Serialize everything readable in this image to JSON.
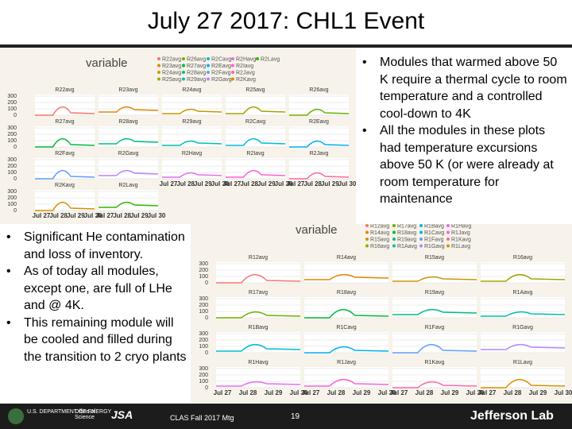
{
  "title": "July 27 2017: CHL1 Event",
  "right_bullets": [
    "Modules that warmed above 50 K require a thermal cycle to room temperature and a controlled cool-down to 4K",
    "All the modules in these plots had temperature excursions above 50 K (or were already at room temperature for maintenance"
  ],
  "left_bullets": [
    "Significant He contamination and loss of inventory.",
    "As of today all modules, except one, are full of LHe and @ 4K.",
    "This remaining module will be cooled and filled during the transition to 2 cryo plants"
  ],
  "plot_1": {
    "legend_title": "variable",
    "legend": [
      "R22avg",
      "R23avg",
      "R24avg",
      "R25avg",
      "R26avg",
      "R27avg",
      "R28avg",
      "R29avg",
      "R2Cavg",
      "R2Eavg",
      "R2Favg",
      "R2Gavg",
      "R2Havg",
      "R2Iavg",
      "R2Javg",
      "R2Kavg",
      "R2Lavg"
    ],
    "panels": [
      [
        "R22avg",
        "R23avg",
        "R24avg",
        "R25avg",
        "R26avg"
      ],
      [
        "R27avg",
        "R28avg",
        "R29avg",
        "R2Cavg",
        "R2Eavg"
      ],
      [
        "R2Favg",
        "R2Gavg",
        "R2Havg",
        "R2Iavg",
        "R2Javg"
      ],
      [
        "R2Kavg",
        "R2Lavg"
      ]
    ],
    "yticks": [
      "300",
      "200",
      "100",
      "0"
    ],
    "xticks": [
      "Jul 27",
      "Jul 28",
      "Jul 29",
      "Jul 30"
    ]
  },
  "plot_2": {
    "legend_title": "variable",
    "legend": [
      "R12avg",
      "R14avg",
      "R15avg",
      "R16avg",
      "R17avg",
      "R18avg",
      "R19avg",
      "R1Aavg",
      "R1Bavg",
      "R1Cavg",
      "R1Favg",
      "R1Gavg",
      "R1Havg",
      "R1Javg",
      "R1Kavg",
      "R1Lavg"
    ],
    "panels": [
      [
        "R12avg",
        "R14avg",
        "R15avg",
        "R16avg"
      ],
      [
        "R17avg",
        "R18avg",
        "R19avg",
        "R1Aavg"
      ],
      [
        "R1Bavg",
        "R1Cavg",
        "R1Favg",
        "R1Gavg"
      ],
      [
        "R1Havg",
        "R1Javg",
        "R1Kavg",
        "R1Lavg"
      ]
    ],
    "yticks": [
      "300",
      "200",
      "100",
      "0"
    ],
    "xticks": [
      "Jul 27",
      "Jul 28",
      "Jul 29",
      "Jul 30"
    ]
  },
  "footer": {
    "doe": "U.S. DEPARTMENT OF ENERGY",
    "office": "Office of Science",
    "jsa": "JSA",
    "meeting": "CLAS Fall 2017 Mtg",
    "page": "19",
    "lab": "Jefferson Lab"
  }
}
